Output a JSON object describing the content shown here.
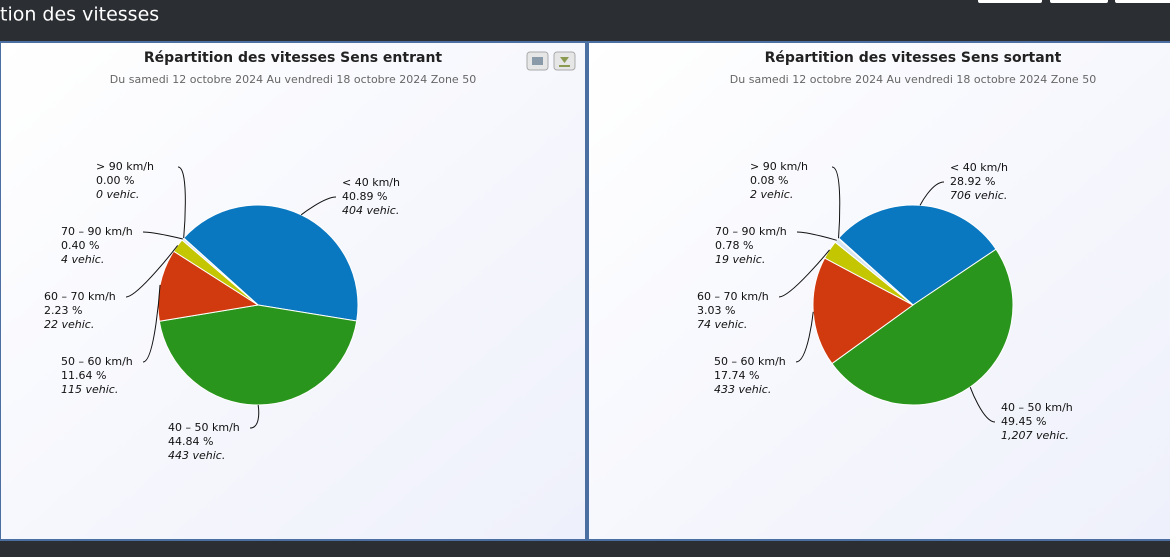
{
  "header": {
    "title": "tion des vitesses"
  },
  "chart_data": [
    {
      "type": "pie",
      "title": "Répartition des vitesses Sens entrant",
      "subtitle": "Du samedi 12 octobre 2024 Au vendredi 18 octobre 2024 Zone 50",
      "categories": [
        "< 40 km/h",
        "40 – 50 km/h",
        "50 – 60 km/h",
        "60 – 70 km/h",
        "70 – 90 km/h",
        "> 90 km/h"
      ],
      "values": [
        40.89,
        44.84,
        11.64,
        2.23,
        0.4,
        0.0
      ],
      "value_labels": [
        "40.89 %",
        "44.84 %",
        "11.64 %",
        "2.23 %",
        "0.40 %",
        "0.00 %"
      ],
      "count_labels": [
        "404 vehic.",
        "443 vehic.",
        "115 vehic.",
        "22 vehic.",
        "4 vehic.",
        "0 vehic."
      ],
      "colors": [
        "#0a78c0",
        "#2a951c",
        "#d03a0e",
        "#c3c600",
        "#d9e6f0",
        "#e0e0e0"
      ]
    },
    {
      "type": "pie",
      "title": "Répartition des vitesses Sens sortant",
      "subtitle": "Du samedi 12 octobre 2024 Au vendredi 18 octobre 2024 Zone 50",
      "categories": [
        "< 40 km/h",
        "40 – 50 km/h",
        "50 – 60 km/h",
        "60 – 70 km/h",
        "70 – 90 km/h",
        "> 90 km/h"
      ],
      "values": [
        28.92,
        49.45,
        17.74,
        3.03,
        0.78,
        0.08
      ],
      "value_labels": [
        "28.92 %",
        "49.45 %",
        "17.74 %",
        "3.03 %",
        "0.78 %",
        "0.08 %"
      ],
      "count_labels": [
        "706 vehic.",
        "1,207 vehic.",
        "433 vehic.",
        "74 vehic.",
        "19 vehic.",
        "2 vehic."
      ],
      "colors": [
        "#0a78c0",
        "#2a951c",
        "#d03a0e",
        "#c3c600",
        "#d9e6f0",
        "#e0e0e0"
      ]
    }
  ]
}
